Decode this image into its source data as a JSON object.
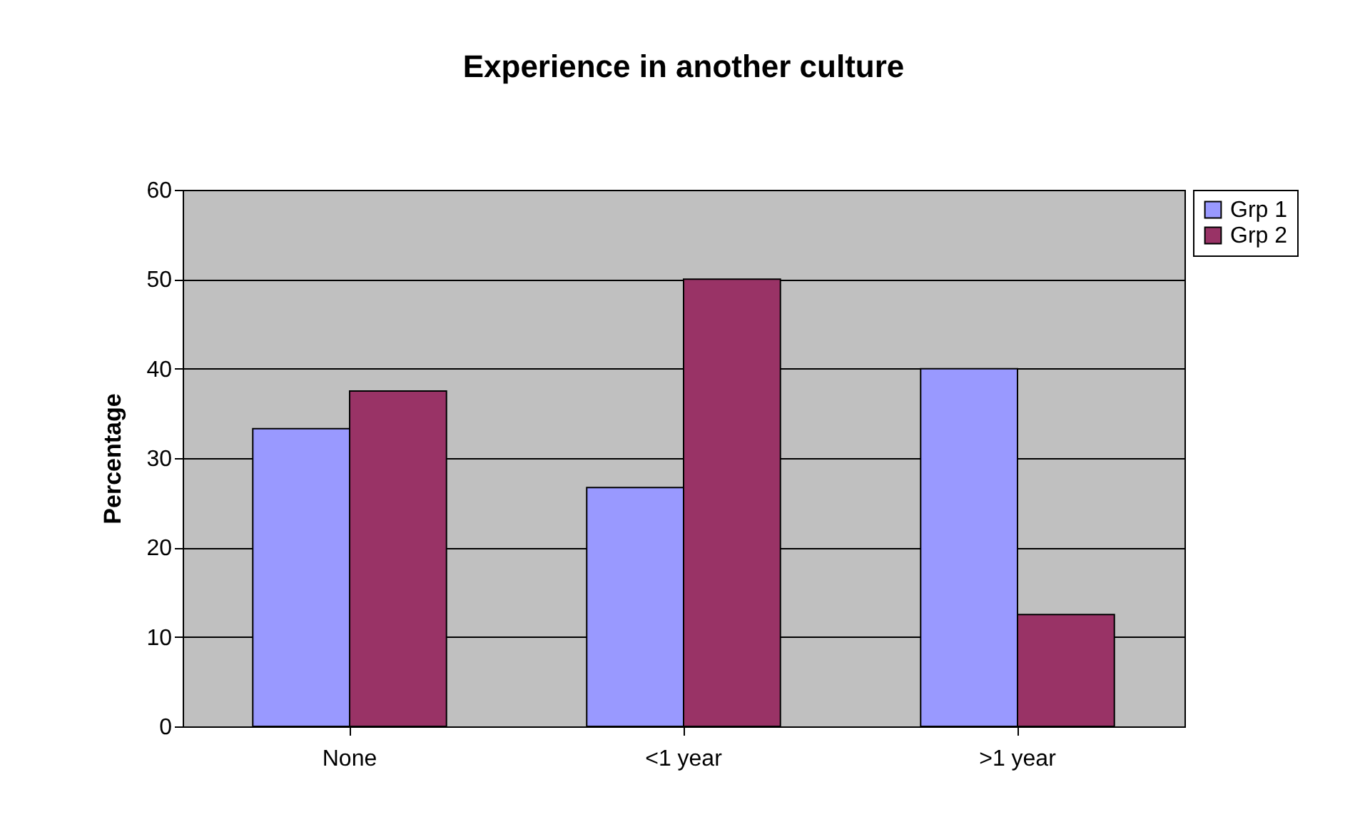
{
  "chart_data": {
    "type": "bar",
    "title": "Experience in another culture",
    "ylabel": "Percentage",
    "categories": [
      "None",
      "<1 year",
      ">1 year"
    ],
    "series": [
      {
        "name": "Grp 1",
        "color": "#9999ff",
        "values": [
          33.3,
          26.7,
          40
        ]
      },
      {
        "name": "Grp 2",
        "color": "#993366",
        "values": [
          37.5,
          50,
          12.5
        ]
      }
    ],
    "ylim": [
      0,
      60
    ],
    "yticks": [
      0,
      10,
      20,
      30,
      40,
      50,
      60
    ],
    "grid": "y",
    "legend": "right"
  }
}
